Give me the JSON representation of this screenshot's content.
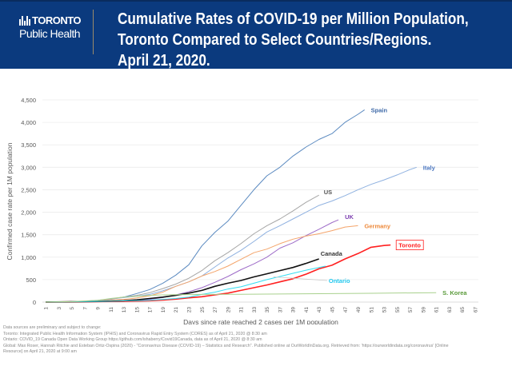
{
  "header": {
    "logo_top": "TORONTO",
    "logo_sub": "Public Health",
    "title_lines": [
      "Cumulative Rates of COVID-19 per Million Population,",
      "Toronto Compared to Select Countries/Regions.",
      "April 21, 2020."
    ]
  },
  "notes": [
    "Data sources are preliminary and subject to change:",
    "Toronto: Integrated Public Health Information System (IPHIS) and Coronavirus Rapid Entry System (CORES)  as of April 21, 2020 @ 8:30 am",
    "Ontario: COVID_19 Canada Open Data Working Group https://github.com/ishaberry/Covid19Canada, data as of April 21, 2020 @ 8:30 am",
    "Global: Max Roser, Hannah Ritchie and Esteban Ortiz-Ospina (2020) - \"Coronavirus Disease (COVID-19) – Statistics and Research\". Published online at OurWorldInData.org. Retrieved from: 'https://ourworldindata.org/coronavirus' [Online",
    "Resource] on April 21, 2020 at 9:00 am"
  ],
  "chart_data": {
    "type": "line",
    "title": "Cumulative Rates of COVID-19 per Million Population, Toronto Compared to Select Countries/Regions. April 21, 2020.",
    "xlabel": "Days since rate reached 2 cases per 1M population",
    "ylabel": "Confirmed case rate per 1M population",
    "xlim": [
      1,
      67
    ],
    "ylim": [
      0,
      4500
    ],
    "yticks": [
      0,
      500,
      1000,
      1500,
      2000,
      2500,
      3000,
      3500,
      4000,
      4500
    ],
    "ytick_labels": [
      "0",
      "500",
      "1,000",
      "1,500",
      "2,000",
      "2,500",
      "3,000",
      "3,500",
      "4,000",
      "4,500"
    ],
    "xticks": [
      1,
      3,
      5,
      7,
      9,
      11,
      13,
      15,
      17,
      19,
      21,
      23,
      25,
      27,
      29,
      31,
      33,
      35,
      37,
      39,
      41,
      43,
      45,
      47,
      49,
      51,
      53,
      55,
      57,
      59,
      61,
      63,
      65,
      67
    ],
    "grid": true,
    "legend": "direct labels at line ends",
    "series": [
      {
        "name": "Spain",
        "color": "#5b8ac0",
        "label_color": "#3f6aa8",
        "points": [
          [
            1,
            2
          ],
          [
            3,
            5
          ],
          [
            5,
            10
          ],
          [
            7,
            18
          ],
          [
            9,
            35
          ],
          [
            11,
            70
          ],
          [
            13,
            110
          ],
          [
            15,
            190
          ],
          [
            17,
            280
          ],
          [
            19,
            420
          ],
          [
            21,
            600
          ],
          [
            23,
            830
          ],
          [
            25,
            1250
          ],
          [
            27,
            1550
          ],
          [
            29,
            1800
          ],
          [
            31,
            2150
          ],
          [
            33,
            2500
          ],
          [
            35,
            2810
          ],
          [
            37,
            3000
          ],
          [
            39,
            3250
          ],
          [
            41,
            3450
          ],
          [
            43,
            3620
          ],
          [
            45,
            3750
          ],
          [
            47,
            4000
          ],
          [
            49,
            4180
          ],
          [
            50,
            4280
          ]
        ]
      },
      {
        "name": "Italy",
        "color": "#8fb1e0",
        "label_color": "#4a76c0",
        "points": [
          [
            1,
            2
          ],
          [
            3,
            5
          ],
          [
            5,
            10
          ],
          [
            7,
            20
          ],
          [
            9,
            40
          ],
          [
            11,
            70
          ],
          [
            13,
            100
          ],
          [
            15,
            130
          ],
          [
            17,
            170
          ],
          [
            19,
            250
          ],
          [
            21,
            350
          ],
          [
            23,
            450
          ],
          [
            25,
            580
          ],
          [
            27,
            780
          ],
          [
            29,
            980
          ],
          [
            31,
            1150
          ],
          [
            33,
            1350
          ],
          [
            35,
            1560
          ],
          [
            37,
            1700
          ],
          [
            39,
            1850
          ],
          [
            41,
            2000
          ],
          [
            43,
            2150
          ],
          [
            45,
            2250
          ],
          [
            47,
            2370
          ],
          [
            49,
            2500
          ],
          [
            51,
            2620
          ],
          [
            53,
            2720
          ],
          [
            55,
            2830
          ],
          [
            57,
            2950
          ],
          [
            58,
            3000
          ]
        ]
      },
      {
        "name": "US",
        "color": "#a6a6a6",
        "label_color": "#555555",
        "points": [
          [
            1,
            2
          ],
          [
            5,
            6
          ],
          [
            9,
            25
          ],
          [
            11,
            60
          ],
          [
            13,
            110
          ],
          [
            15,
            150
          ],
          [
            17,
            210
          ],
          [
            19,
            300
          ],
          [
            21,
            400
          ],
          [
            23,
            530
          ],
          [
            25,
            700
          ],
          [
            27,
            920
          ],
          [
            29,
            1100
          ],
          [
            31,
            1300
          ],
          [
            33,
            1520
          ],
          [
            35,
            1700
          ],
          [
            37,
            1850
          ],
          [
            39,
            2030
          ],
          [
            41,
            2220
          ],
          [
            43,
            2380
          ]
        ]
      },
      {
        "name": "UK",
        "color": "#9e6cc8",
        "label_color": "#7d3fb0",
        "points": [
          [
            1,
            2
          ],
          [
            7,
            10
          ],
          [
            13,
            30
          ],
          [
            17,
            60
          ],
          [
            19,
            100
          ],
          [
            21,
            160
          ],
          [
            23,
            230
          ],
          [
            25,
            320
          ],
          [
            27,
            440
          ],
          [
            29,
            570
          ],
          [
            31,
            720
          ],
          [
            33,
            850
          ],
          [
            35,
            1000
          ],
          [
            37,
            1200
          ],
          [
            39,
            1320
          ],
          [
            41,
            1480
          ],
          [
            43,
            1620
          ],
          [
            45,
            1770
          ],
          [
            46,
            1830
          ]
        ]
      },
      {
        "name": "Germany",
        "color": "#f4a46a",
        "label_color": "#ee8a3c",
        "points": [
          [
            1,
            2
          ],
          [
            7,
            12
          ],
          [
            11,
            40
          ],
          [
            13,
            60
          ],
          [
            15,
            90
          ],
          [
            17,
            140
          ],
          [
            19,
            220
          ],
          [
            21,
            350
          ],
          [
            23,
            450
          ],
          [
            25,
            580
          ],
          [
            27,
            680
          ],
          [
            29,
            800
          ],
          [
            31,
            950
          ],
          [
            33,
            1100
          ],
          [
            35,
            1180
          ],
          [
            37,
            1300
          ],
          [
            39,
            1400
          ],
          [
            41,
            1470
          ],
          [
            43,
            1520
          ],
          [
            45,
            1590
          ],
          [
            47,
            1670
          ],
          [
            49,
            1700
          ]
        ]
      },
      {
        "name": "Toronto",
        "color": "#ff2020",
        "label_color": "#ff2020",
        "points": [
          [
            1,
            2
          ],
          [
            9,
            10
          ],
          [
            13,
            15
          ],
          [
            17,
            30
          ],
          [
            19,
            45
          ],
          [
            21,
            65
          ],
          [
            23,
            95
          ],
          [
            25,
            120
          ],
          [
            27,
            160
          ],
          [
            29,
            200
          ],
          [
            31,
            260
          ],
          [
            33,
            320
          ],
          [
            35,
            380
          ],
          [
            37,
            450
          ],
          [
            39,
            520
          ],
          [
            41,
            620
          ],
          [
            43,
            740
          ],
          [
            45,
            820
          ],
          [
            47,
            960
          ],
          [
            49,
            1080
          ],
          [
            51,
            1220
          ],
          [
            53,
            1260
          ],
          [
            54,
            1270
          ]
        ]
      },
      {
        "name": "Canada",
        "color": "#111111",
        "label_color": "#333333",
        "points": [
          [
            1,
            2
          ],
          [
            9,
            15
          ],
          [
            13,
            30
          ],
          [
            15,
            50
          ],
          [
            17,
            80
          ],
          [
            19,
            110
          ],
          [
            21,
            150
          ],
          [
            23,
            200
          ],
          [
            25,
            260
          ],
          [
            27,
            350
          ],
          [
            29,
            420
          ],
          [
            31,
            480
          ],
          [
            33,
            560
          ],
          [
            35,
            630
          ],
          [
            37,
            700
          ],
          [
            39,
            770
          ],
          [
            41,
            860
          ],
          [
            43,
            960
          ]
        ]
      },
      {
        "name": "Ontario",
        "color": "#33ddf2",
        "label_color": "#22c8ee",
        "points": [
          [
            1,
            2
          ],
          [
            11,
            20
          ],
          [
            15,
            30
          ],
          [
            17,
            40
          ],
          [
            19,
            60
          ],
          [
            21,
            80
          ],
          [
            23,
            110
          ],
          [
            25,
            170
          ],
          [
            27,
            220
          ],
          [
            29,
            290
          ],
          [
            31,
            340
          ],
          [
            33,
            420
          ],
          [
            35,
            500
          ],
          [
            37,
            570
          ],
          [
            39,
            640
          ],
          [
            41,
            710
          ],
          [
            43,
            770
          ],
          [
            44,
            800
          ]
        ]
      },
      {
        "name": "S. Korea",
        "color": "#a9d18e",
        "label_color": "#5a9a3a",
        "points": [
          [
            1,
            2
          ],
          [
            5,
            10
          ],
          [
            9,
            40
          ],
          [
            11,
            80
          ],
          [
            13,
            110
          ],
          [
            15,
            130
          ],
          [
            17,
            150
          ],
          [
            19,
            160
          ],
          [
            21,
            165
          ],
          [
            25,
            170
          ],
          [
            31,
            175
          ],
          [
            41,
            185
          ],
          [
            51,
            195
          ],
          [
            61,
            210
          ]
        ]
      }
    ]
  }
}
